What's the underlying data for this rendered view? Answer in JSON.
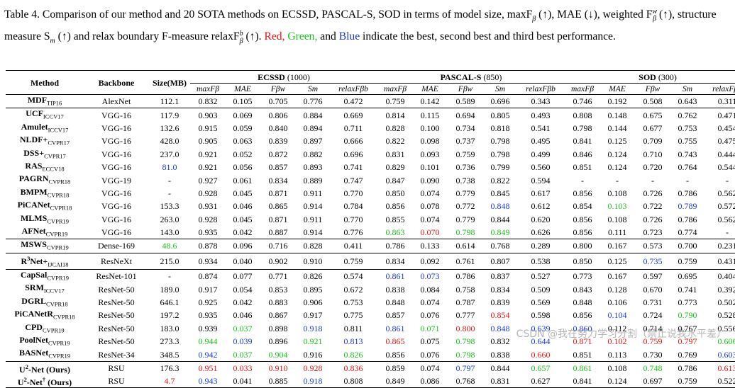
{
  "caption": {
    "label": "Table 4.",
    "text1": " Comparison of our method and 20 SOTA methods on ECSSD, PASCAL-S, SOD in terms of model size, maxF",
    "text2": " (↑), MAE (↓), weighted F",
    "text3": " (↑), structure measure S",
    "text4": " (↑) and relax boundary F-measure relaxF",
    "text5": " (↑). ",
    "red": "Red,",
    "green": "Green,",
    "and": " and ",
    "blue": "Blue",
    "text6": " indicate the best, second best and third best performance."
  },
  "header": {
    "method": "Method",
    "backbone": "Backbone",
    "size": "Size(MB)",
    "datasets": [
      {
        "name": "ECSSD",
        "count": "(1000)"
      },
      {
        "name": "PASCAL-S",
        "count": "(850)"
      },
      {
        "name": "SOD",
        "count": "(300)"
      }
    ],
    "metrics": [
      "maxFβ",
      "MAE",
      "Fβw",
      "Sm",
      "relaxFβb"
    ]
  },
  "rows": [
    {
      "name": "MDF",
      "sub": "TIP16",
      "backbone": "AlexNet",
      "size": "112.1",
      "v": [
        "0.832",
        "0.105",
        "0.705",
        "0.776",
        "0.472",
        "0.759",
        "0.142",
        "0.589",
        "0.696",
        "0.343",
        "0.746",
        "0.192",
        "0.508",
        "0.643",
        "0.311"
      ],
      "c": {}
    },
    {
      "name": "UCF",
      "sub": "ICCV17",
      "backbone": "VGG-16",
      "size": "117.9",
      "v": [
        "0.903",
        "0.069",
        "0.806",
        "0.884",
        "0.669",
        "0.814",
        "0.115",
        "0.694",
        "0.805",
        "0.493",
        "0.808",
        "0.148",
        "0.675",
        "0.762",
        "0.471"
      ],
      "c": {},
      "group": true
    },
    {
      "name": "Amulet",
      "sub": "ICCV17",
      "backbone": "VGG-16",
      "size": "132.6",
      "v": [
        "0.915",
        "0.059",
        "0.840",
        "0.894",
        "0.711",
        "0.828",
        "0.100",
        "0.734",
        "0.818",
        "0.541",
        "0.798",
        "0.144",
        "0.677",
        "0.753",
        "0.454"
      ],
      "c": {}
    },
    {
      "name": "NLDF+",
      "sub": "CVPR17",
      "backbone": "VGG-16",
      "size": "428.0",
      "v": [
        "0.905",
        "0.063",
        "0.839",
        "0.897",
        "0.666",
        "0.822",
        "0.098",
        "0.737",
        "0.798",
        "0.495",
        "0.841",
        "0.125",
        "0.709",
        "0.755",
        "0.475"
      ],
      "c": {}
    },
    {
      "name": "DSS+",
      "sub": "CVPR17",
      "backbone": "VGG-16",
      "size": "237.0",
      "v": [
        "0.921",
        "0.052",
        "0.872",
        "0.882",
        "0.696",
        "0.831",
        "0.093",
        "0.759",
        "0.798",
        "0.499",
        "0.846",
        "0.124",
        "0.710",
        "0.743",
        "0.444"
      ],
      "c": {}
    },
    {
      "name": "RAS",
      "sub": "ECCV18",
      "backbone": "VGG-16",
      "size": "81.0",
      "v": [
        "0.921",
        "0.056",
        "0.857",
        "0.893",
        "0.741",
        "0.829",
        "0.101",
        "0.736",
        "0.799",
        "0.560",
        "0.851",
        "0.124",
        "0.720",
        "0.764",
        "0.544"
      ],
      "c": {
        "size": "blue"
      }
    },
    {
      "name": "PAGRN",
      "sub": "CVPR18",
      "backbone": "VGG-19",
      "size": "-",
      "v": [
        "0.927",
        "0.061",
        "0.834",
        "0.889",
        "0.747",
        "0.847",
        "0.090",
        "0.738",
        "0.822",
        "0.594",
        "-",
        "-",
        "-",
        "-",
        "-"
      ],
      "c": {}
    },
    {
      "name": "BMPM",
      "sub": "CVPR18",
      "backbone": "VGG-16",
      "size": "-",
      "v": [
        "0.928",
        "0.045",
        "0.871",
        "0.911",
        "0.770",
        "0.850",
        "0.074",
        "0.779",
        "0.845",
        "0.617",
        "0.856",
        "0.108",
        "0.726",
        "0.786",
        "0.562"
      ],
      "c": {}
    },
    {
      "name": "PiCANet",
      "sub": "CVPR18",
      "backbone": "VGG-16",
      "size": "153.3",
      "v": [
        "0.931",
        "0.046",
        "0.865",
        "0.914",
        "0.784",
        "0.856",
        "0.078",
        "0.772",
        "0.848",
        "0.612",
        "0.854",
        "0.103",
        "0.722",
        "0.789",
        "0.572"
      ],
      "c": {
        "8": "blue",
        "11": "green",
        "13": "blue"
      }
    },
    {
      "name": "MLMS",
      "sub": "CVPR19",
      "backbone": "VGG-16",
      "size": "263.0",
      "v": [
        "0.928",
        "0.045",
        "0.871",
        "0.911",
        "0.770",
        "0.855",
        "0.074",
        "0.779",
        "0.844",
        "0.620",
        "0.856",
        "0.108",
        "0.726",
        "0.786",
        "0.562"
      ],
      "c": {}
    },
    {
      "name": "AFNet",
      "sub": "CVPR19",
      "backbone": "VGG-16",
      "size": "143.0",
      "v": [
        "0.935",
        "0.042",
        "0.887",
        "0.914",
        "0.776",
        "0.863",
        "0.070",
        "0.798",
        "0.849",
        "0.626",
        "0.856",
        "0.111",
        "0.723",
        "0.774",
        "-"
      ],
      "c": {
        "5": "green",
        "6": "red",
        "7": "green",
        "8": "green"
      }
    },
    {
      "name": "MSWS",
      "sub": "CVPR19",
      "backbone": "Dense-169",
      "size": "48.6",
      "v": [
        "0.878",
        "0.096",
        "0.716",
        "0.828",
        "0.411",
        "0.786",
        "0.133",
        "0.614",
        "0.768",
        "0.289",
        "0.800",
        "0.167",
        "0.573",
        "0.700",
        "0.231"
      ],
      "c": {
        "size": "green"
      },
      "group": true
    },
    {
      "name": "R",
      "sup": "3",
      "name2": "Net+",
      "sub": "IJCAI18",
      "backbone": "ResNeXt",
      "size": "215.0",
      "v": [
        "0.934",
        "0.040",
        "0.902",
        "0.910",
        "0.759",
        "0.834",
        "0.092",
        "0.761",
        "0.807",
        "0.538",
        "0.850",
        "0.125",
        "0.735",
        "0.759",
        "0.431"
      ],
      "c": {
        "12": "blue"
      },
      "group": true
    },
    {
      "name": "CapSal",
      "sub": "CVPR19",
      "backbone": "ResNet-101",
      "size": "-",
      "v": [
        "0.874",
        "0.077",
        "0.771",
        "0.826",
        "0.574",
        "0.861",
        "0.073",
        "0.786",
        "0.837",
        "0.527",
        "0.773",
        "0.167",
        "0.597",
        "0.695",
        "0.404"
      ],
      "c": {
        "5": "blue",
        "6": "blue"
      },
      "group": true
    },
    {
      "name": "SRM",
      "sub": "ICCV17",
      "backbone": "ResNet-50",
      "size": "189.0",
      "v": [
        "0.917",
        "0.054",
        "0.853",
        "0.895",
        "0.672",
        "0.838",
        "0.084",
        "0.758",
        "0.834",
        "0.509",
        "0.843",
        "0.128",
        "0.670",
        "0.741",
        "0.392"
      ],
      "c": {}
    },
    {
      "name": "DGRL",
      "sub": "CVPR18",
      "backbone": "ResNet-50",
      "size": "646.1",
      "v": [
        "0.925",
        "0.042",
        "0.883",
        "0.906",
        "0.753",
        "0.848",
        "0.074",
        "0.787",
        "0.839",
        "0.569",
        "0.848",
        "0.106",
        "0.731",
        "0.773",
        "0.502"
      ],
      "c": {}
    },
    {
      "name": "PiCANetR",
      "sub": "CVPR18",
      "backbone": "ResNet-50",
      "size": "197.2",
      "v": [
        "0.935",
        "0.046",
        "0.867",
        "0.917",
        "0.775",
        "0.857",
        "0.076",
        "0.777",
        "0.854",
        "0.598",
        "0.856",
        "0.104",
        "0.724",
        "0.790",
        "0.528"
      ],
      "c": {
        "8": "red",
        "11": "blue",
        "13": "green"
      }
    },
    {
      "name": "CPD",
      "sub": "CVPR19",
      "backbone": "ResNet-50",
      "size": "183.0",
      "v": [
        "0.939",
        "0.037",
        "0.898",
        "0.918",
        "0.811",
        "0.861",
        "0.071",
        "0.800",
        "0.848",
        "0.639",
        "0.860",
        "0.112",
        "0.714",
        "0.767",
        "0.556"
      ],
      "c": {
        "1": "green",
        "3": "blue",
        "5": "blue",
        "6": "green",
        "7": "red",
        "8": "blue",
        "9": "blue",
        "10": "blue"
      }
    },
    {
      "name": "PoolNet",
      "sub": "CVPR19",
      "backbone": "ResNet-50",
      "size": "273.3",
      "v": [
        "0.944",
        "0.039",
        "0.896",
        "0.921",
        "0.813",
        "0.865",
        "0.075",
        "0.798",
        "0.832",
        "0.644",
        "0.871",
        "0.102",
        "0.759",
        "0.797",
        "0.606"
      ],
      "c": {
        "0": "green",
        "1": "blue",
        "3": "green",
        "4": "blue",
        "5": "red",
        "7": "green",
        "9": "blue",
        "10": "red",
        "11": "red",
        "12": "red",
        "13": "red",
        "14": "green"
      }
    },
    {
      "name": "BASNet",
      "sub": "CVPR19",
      "backbone": "ResNet-34",
      "size": "348.5",
      "v": [
        "0.942",
        "0.037",
        "0.904",
        "0.916",
        "0.826",
        "0.856",
        "0.076",
        "0.798",
        "0.838",
        "0.660",
        "0.851",
        "0.113",
        "0.730",
        "0.769",
        "0.603"
      ],
      "c": {
        "0": "blue",
        "1": "green",
        "2": "green",
        "4": "green",
        "7": "green",
        "9": "red",
        "14": "blue"
      }
    },
    {
      "name": "U",
      "sup": "2",
      "name2": "-Net",
      "plain": " (Ours)",
      "backbone": "RSU",
      "size": "176.3",
      "v": [
        "0.951",
        "0.033",
        "0.910",
        "0.928",
        "0.836",
        "0.859",
        "0.074",
        "0.797",
        "0.844",
        "0.657",
        "0.861",
        "0.108",
        "0.748",
        "0.786",
        "0.613"
      ],
      "c": {
        "0": "red",
        "1": "red",
        "2": "red",
        "3": "red",
        "4": "red",
        "7": "blue",
        "9": "green",
        "10": "green",
        "12": "green",
        "14": "red"
      },
      "group": true
    },
    {
      "name": "U",
      "sup": "2",
      "name2": "-Net",
      "dagger": "†",
      "plain": " (Ours)",
      "backbone": "RSU",
      "size": "4.7",
      "v": [
        "0.943",
        "0.041",
        "0.885",
        "0.918",
        "0.808",
        "0.849",
        "0.086",
        "0.768",
        "0.831",
        "0.627",
        "0.841",
        "0.124",
        "0.697",
        "0.759",
        "0.522"
      ],
      "c": {
        "size": "red",
        "0": "blue",
        "3": "blue"
      }
    }
  ],
  "watermark": "CSDN @我在努力学习分割（禁止说我水平差）"
}
